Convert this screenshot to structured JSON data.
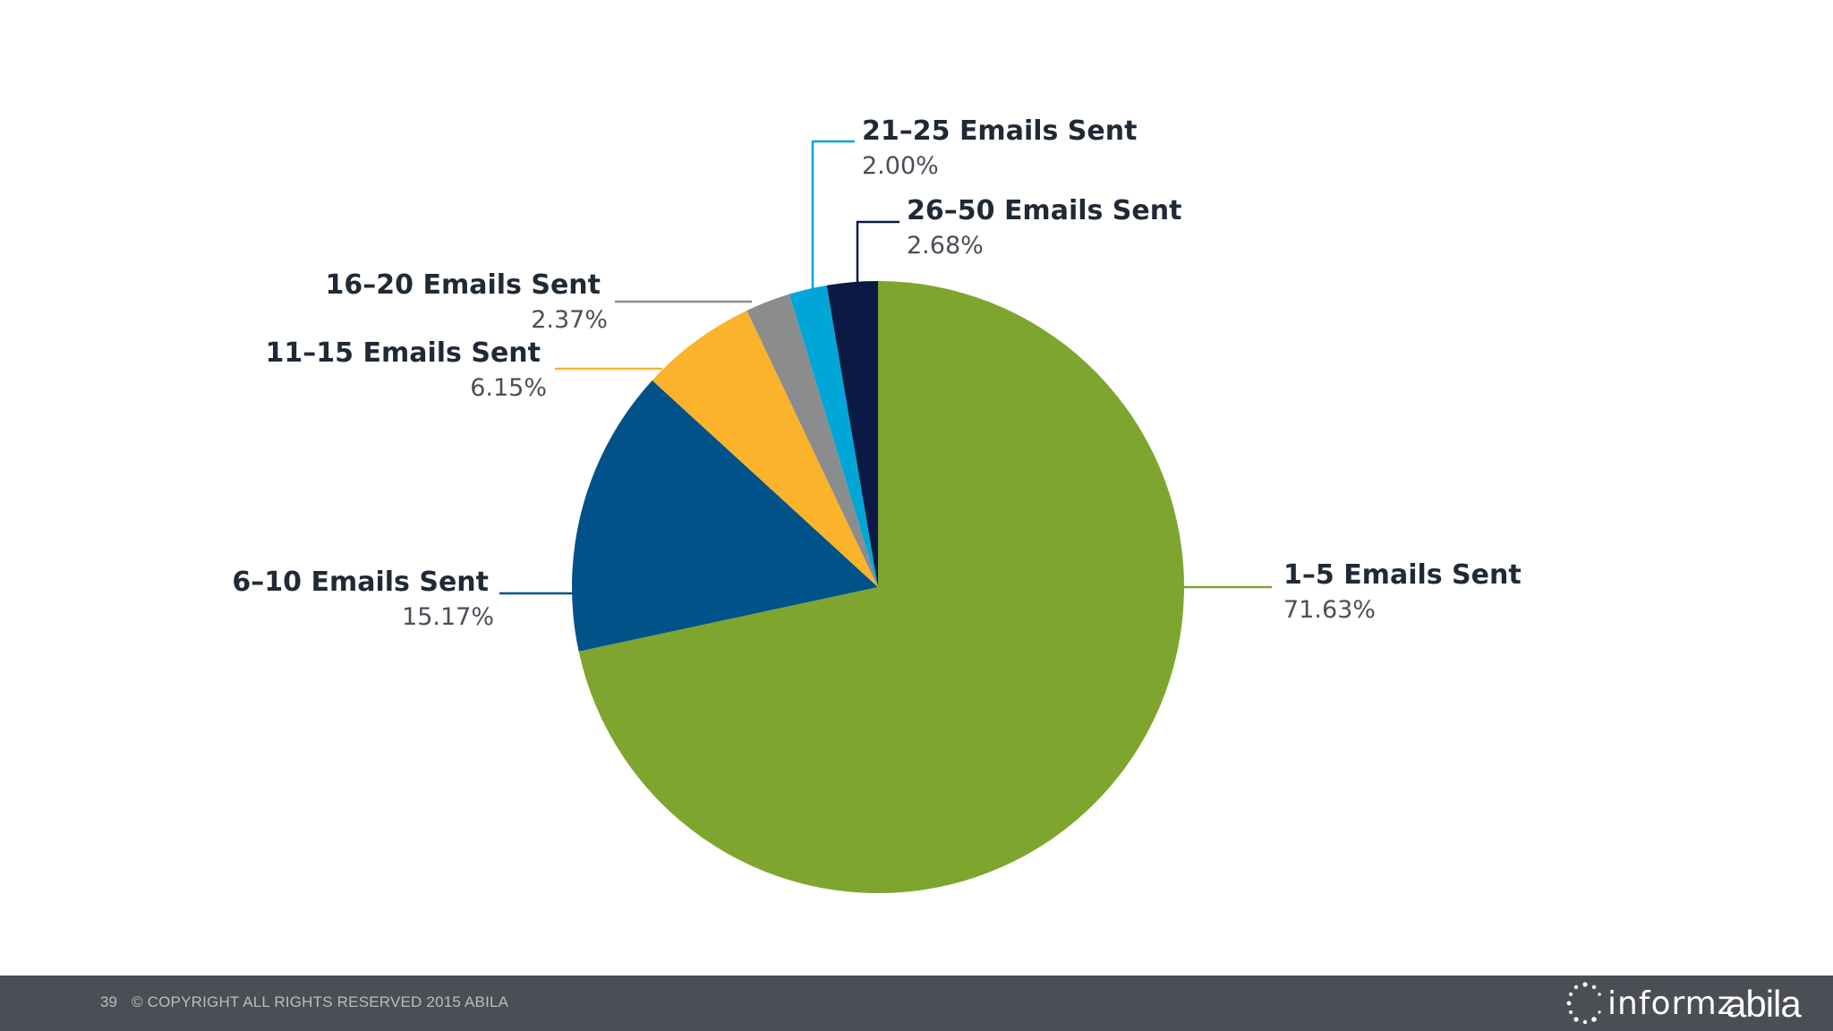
{
  "chart_data": {
    "type": "pie",
    "title": "",
    "slices": [
      {
        "label": "1–5 Emails Sent",
        "value": 71.63,
        "display": "71.63%",
        "color": "#7ea62f"
      },
      {
        "label": "6–10 Emails Sent",
        "value": 15.17,
        "display": "15.17%",
        "color": "#005288"
      },
      {
        "label": "11–15 Emails Sent",
        "value": 6.15,
        "display": "6.15%",
        "color": "#fbb32b"
      },
      {
        "label": "16–20 Emails Sent",
        "value": 2.37,
        "display": "2.37%",
        "color": "#8b8c8e"
      },
      {
        "label": "21–25 Emails Sent",
        "value": 2.0,
        "display": "2.00%",
        "color": "#00a7d6"
      },
      {
        "label": "26–50 Emails Sent",
        "value": 2.68,
        "display": "2.68%",
        "color": "#0b1a45"
      }
    ],
    "start_angle": "12 o'clock",
    "direction": "clockwise"
  },
  "footer": {
    "page_number": "39",
    "copyright": "© COPYRIGHT ALL RIGHTS RESERVED 2015 ABILA",
    "logo_informz": "informz",
    "logo_abila": "abila",
    "background_color": "#4b4e54"
  }
}
